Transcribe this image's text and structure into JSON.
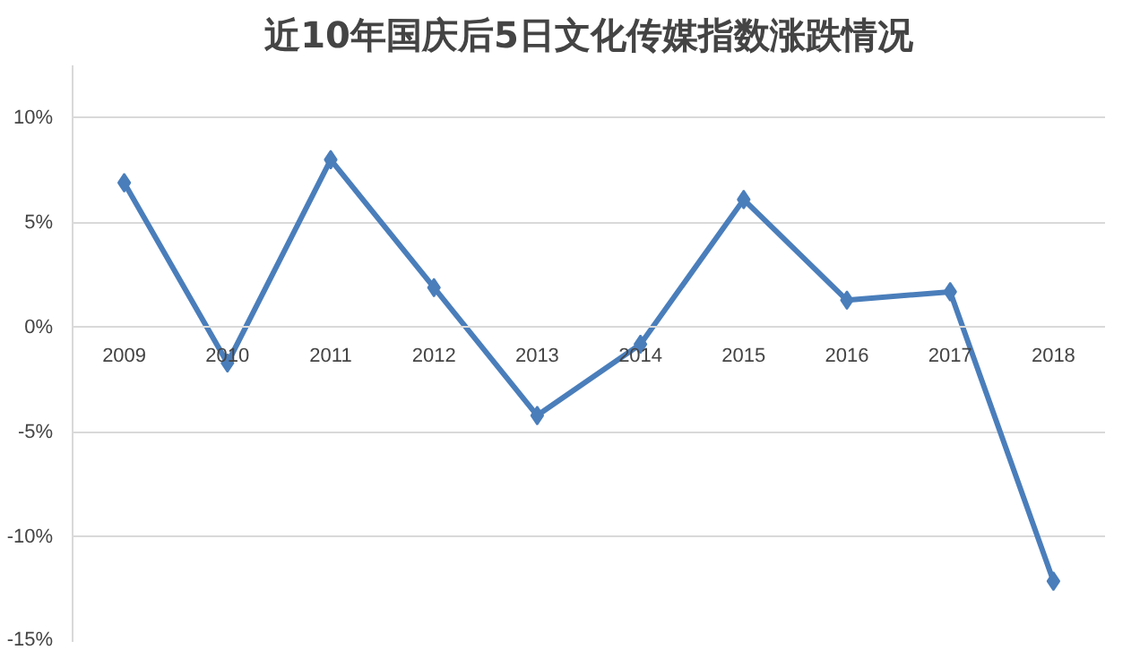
{
  "chart_data": {
    "type": "line",
    "title": "近10年国庆后5日文化传媒指数涨跌情况",
    "categories": [
      "2009",
      "2010",
      "2011",
      "2012",
      "2013",
      "2014",
      "2015",
      "2016",
      "2017",
      "2018"
    ],
    "series": [
      {
        "color": "#4a7ebb",
        "values": [
          6.9,
          -1.7,
          8.0,
          1.9,
          -4.2,
          -0.8,
          6.1,
          1.3,
          1.7,
          -12.1
        ]
      }
    ],
    "ylim": [
      -15,
      12.5
    ],
    "yticks": [
      {
        "value": -15,
        "label": "-15%"
      },
      {
        "value": -10,
        "label": "-10%"
      },
      {
        "value": -5,
        "label": "-5%"
      },
      {
        "value": 0,
        "label": "0%"
      },
      {
        "value": 5,
        "label": "5%"
      },
      {
        "value": 10,
        "label": "10%"
      }
    ],
    "grid": "y",
    "marker": "diamond",
    "line_style": "solid"
  }
}
